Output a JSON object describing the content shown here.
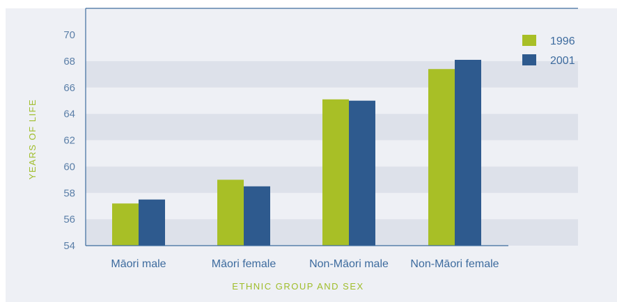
{
  "chart_data": {
    "type": "bar",
    "categories": [
      "Māori male",
      "Māori female",
      "Non-Māori male",
      "Non-Māori female"
    ],
    "series": [
      {
        "name": "1996",
        "values": [
          57.2,
          59.0,
          65.1,
          67.4
        ],
        "color": "#a8bf26"
      },
      {
        "name": "2001",
        "values": [
          57.5,
          58.5,
          65.0,
          68.1
        ],
        "color": "#2e5a8e"
      }
    ],
    "xlabel": "ETHNIC GROUP AND SEX",
    "ylabel": "YEARS OF LIFE",
    "ylim": [
      54,
      70
    ],
    "yticks": [
      "54",
      "56",
      "58",
      "60",
      "62",
      "64",
      "66",
      "68",
      "70"
    ],
    "legend_position": "top-right",
    "grid": "alternating horizontal bands",
    "colors": {
      "panel_background": "#eef0f5",
      "band_shade": "#dde1ea",
      "axis_line": "#3d6b9e",
      "tick_text": "#5b7fa8",
      "axis_title_text": "#9fbd2a"
    }
  }
}
